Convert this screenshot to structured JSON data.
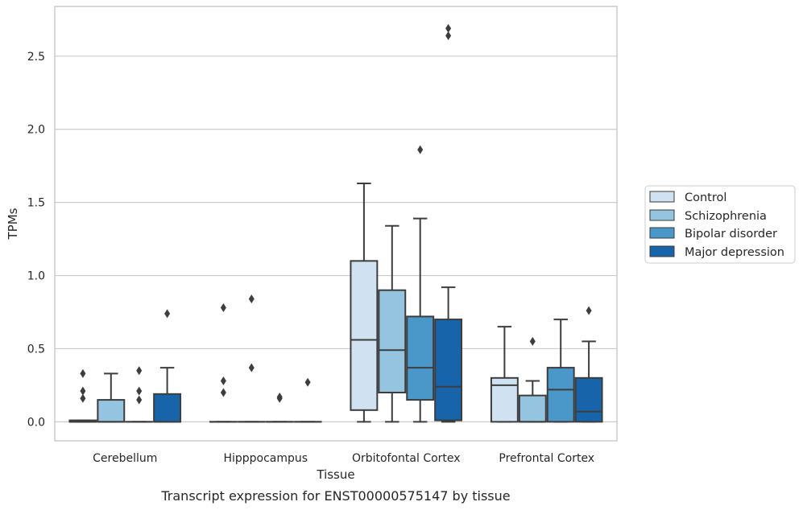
{
  "caption": "Transcript expression for ENST00000575147 by tissue",
  "chart_data": {
    "type": "boxplot",
    "xlabel": "Tissue",
    "ylabel": "TPMs",
    "ylim": [
      -0.13,
      2.84
    ],
    "yticks": [
      "0.0",
      "0.5",
      "1.0",
      "1.5",
      "2.0",
      "2.5"
    ],
    "grid": "horizontal",
    "legend_position": "right",
    "categories": [
      "Cerebellum",
      "Hipppocampus",
      "Orbitofontal Cortex",
      "Prefrontal Cortex"
    ],
    "series": [
      {
        "name": "Control",
        "color": "#d0e1f2",
        "boxes": [
          {
            "q1": 0.0,
            "median": 0.0,
            "q3": 0.01,
            "whisker_low": 0.0,
            "whisker_high": 0.01,
            "outliers": [
              0.16,
              0.21,
              0.33
            ]
          },
          {
            "q1": 0.0,
            "median": 0.0,
            "q3": 0.0,
            "whisker_low": 0.0,
            "whisker_high": 0.0,
            "outliers": [
              0.2,
              0.28,
              0.78
            ]
          },
          {
            "q1": 0.08,
            "median": 0.56,
            "q3": 1.1,
            "whisker_low": 0.0,
            "whisker_high": 1.63,
            "outliers": []
          },
          {
            "q1": 0.0,
            "median": 0.25,
            "q3": 0.3,
            "whisker_low": 0.0,
            "whisker_high": 0.65,
            "outliers": []
          }
        ]
      },
      {
        "name": "Schizophrenia",
        "color": "#94c4df",
        "boxes": [
          {
            "q1": 0.0,
            "median": 0.0,
            "q3": 0.15,
            "whisker_low": 0.0,
            "whisker_high": 0.33,
            "outliers": []
          },
          {
            "q1": 0.0,
            "median": 0.0,
            "q3": 0.0,
            "whisker_low": 0.0,
            "whisker_high": 0.0,
            "outliers": [
              0.37,
              0.84
            ]
          },
          {
            "q1": 0.2,
            "median": 0.49,
            "q3": 0.9,
            "whisker_low": 0.0,
            "whisker_high": 1.34,
            "outliers": []
          },
          {
            "q1": 0.0,
            "median": 0.0,
            "q3": 0.18,
            "whisker_low": 0.0,
            "whisker_high": 0.28,
            "outliers": [
              0.55
            ]
          }
        ]
      },
      {
        "name": "Bipolar disorder",
        "color": "#4a98c9",
        "boxes": [
          {
            "q1": 0.0,
            "median": 0.0,
            "q3": 0.0,
            "whisker_low": 0.0,
            "whisker_high": 0.0,
            "outliers": [
              0.15,
              0.21,
              0.35
            ]
          },
          {
            "q1": 0.0,
            "median": 0.0,
            "q3": 0.0,
            "whisker_low": 0.0,
            "whisker_high": 0.0,
            "outliers": [
              0.16,
              0.17
            ]
          },
          {
            "q1": 0.15,
            "median": 0.37,
            "q3": 0.72,
            "whisker_low": 0.0,
            "whisker_high": 1.39,
            "outliers": [
              1.86
            ]
          },
          {
            "q1": 0.0,
            "median": 0.22,
            "q3": 0.37,
            "whisker_low": 0.0,
            "whisker_high": 0.7,
            "outliers": []
          }
        ]
      },
      {
        "name": "Major depression",
        "color": "#1764ab",
        "boxes": [
          {
            "q1": 0.0,
            "median": 0.0,
            "q3": 0.19,
            "whisker_low": 0.0,
            "whisker_high": 0.37,
            "outliers": [
              0.74
            ]
          },
          {
            "q1": 0.0,
            "median": 0.0,
            "q3": 0.0,
            "whisker_low": 0.0,
            "whisker_high": 0.0,
            "outliers": [
              0.27
            ]
          },
          {
            "q1": 0.01,
            "median": 0.24,
            "q3": 0.7,
            "whisker_low": 0.0,
            "whisker_high": 0.92,
            "outliers": [
              2.64,
              2.69
            ]
          },
          {
            "q1": 0.0,
            "median": 0.07,
            "q3": 0.3,
            "whisker_low": 0.0,
            "whisker_high": 0.55,
            "outliers": [
              0.76
            ]
          }
        ]
      }
    ]
  }
}
